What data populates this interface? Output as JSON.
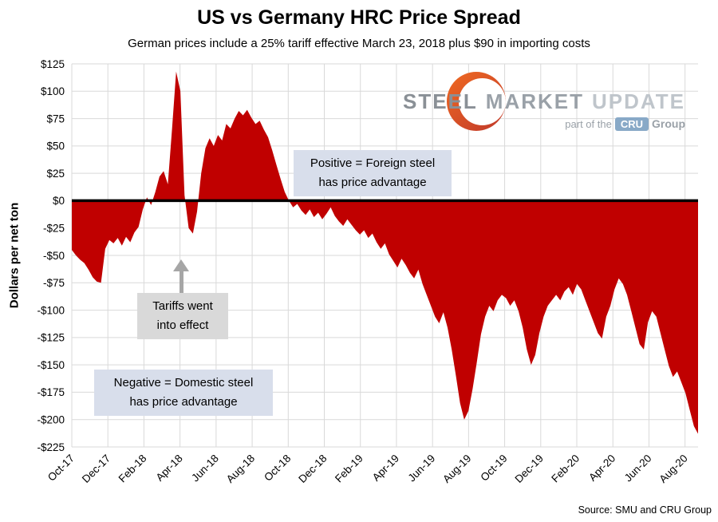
{
  "chart_data": {
    "type": "area",
    "title": "US vs Germany HRC Price Spread",
    "subtitle": "German prices include a 25% tariff effective March 23, 2018 plus $90 in importing costs",
    "ylabel": "Dollars per net ton",
    "ylim": [
      -225,
      125
    ],
    "ytick_values": [
      125,
      100,
      75,
      50,
      25,
      0,
      -25,
      -50,
      -75,
      -100,
      -125,
      -150,
      -175,
      -200,
      -225
    ],
    "ytick_labels": [
      "$125",
      "$100",
      "$75",
      "$50",
      "$25",
      "$0",
      "-$25",
      "-$50",
      "-$75",
      "-$100",
      "-$125",
      "-$150",
      "-$175",
      "-$200",
      "-$225"
    ],
    "categories": [
      "Oct-17",
      "Dec-17",
      "Feb-18",
      "Apr-18",
      "Jun-18",
      "Aug-18",
      "Oct-18",
      "Dec-18",
      "Feb-19",
      "Apr-19",
      "Jun-19",
      "Aug-19",
      "Oct-19",
      "Dec-19",
      "Feb-20",
      "Apr-20",
      "Jun-20",
      "Aug-20"
    ],
    "values": [
      -45,
      -50,
      -54,
      -57,
      -63,
      -70,
      -74,
      -75,
      -44,
      -36,
      -39,
      -34,
      -41,
      -33,
      -38,
      -29,
      -24,
      -8,
      3,
      -4,
      8,
      22,
      27,
      15,
      65,
      118,
      100,
      5,
      -25,
      -30,
      -10,
      25,
      48,
      57,
      50,
      60,
      55,
      70,
      66,
      75,
      82,
      78,
      83,
      76,
      70,
      73,
      65,
      58,
      46,
      33,
      20,
      8,
      0,
      -6,
      -3,
      -9,
      -13,
      -8,
      -15,
      -11,
      -17,
      -12,
      -6,
      -14,
      -19,
      -23,
      -17,
      -22,
      -27,
      -31,
      -27,
      -34,
      -30,
      -38,
      -44,
      -39,
      -49,
      -55,
      -61,
      -53,
      -59,
      -66,
      -71,
      -63,
      -76,
      -86,
      -96,
      -106,
      -112,
      -102,
      -116,
      -136,
      -160,
      -185,
      -200,
      -192,
      -172,
      -148,
      -122,
      -106,
      -96,
      -101,
      -91,
      -86,
      -89,
      -96,
      -91,
      -101,
      -116,
      -136,
      -150,
      -141,
      -121,
      -106,
      -96,
      -91,
      -86,
      -91,
      -83,
      -79,
      -86,
      -76,
      -81,
      -91,
      -101,
      -111,
      -121,
      -126,
      -106,
      -96,
      -81,
      -71,
      -76,
      -86,
      -101,
      -116,
      -131,
      -136,
      -111,
      -101,
      -106,
      -121,
      -136,
      -151,
      -161,
      -156,
      -166,
      -176,
      -191,
      -206,
      -213
    ],
    "series_color": "#c00000",
    "zero_line_color": "#000000",
    "grid": true,
    "grid_color": "#d9d9d9",
    "legend": "none",
    "annotations": {
      "positive": {
        "line1": "Positive = Foreign steel",
        "line2": "has price advantage"
      },
      "tariff": {
        "line1": "Tariffs went",
        "line2": "into effect"
      },
      "negative": {
        "line1": "Negative = Domestic steel",
        "line2": "has price advantage"
      }
    }
  },
  "logo": {
    "steel": "STEEL",
    "market": "MARKET",
    "update": "UPDATE",
    "part_of": "part of the",
    "cru": "CRU",
    "group": "Group"
  },
  "source": "Source: SMU and CRU Group",
  "colors": {
    "area": "#c00000",
    "note_blue": "#d8deeb",
    "note_gray": "#d9d9d9",
    "arrow_gray": "#a6a6a6",
    "grid": "#d9d9d9",
    "cru_badge": "#88a9c7"
  }
}
